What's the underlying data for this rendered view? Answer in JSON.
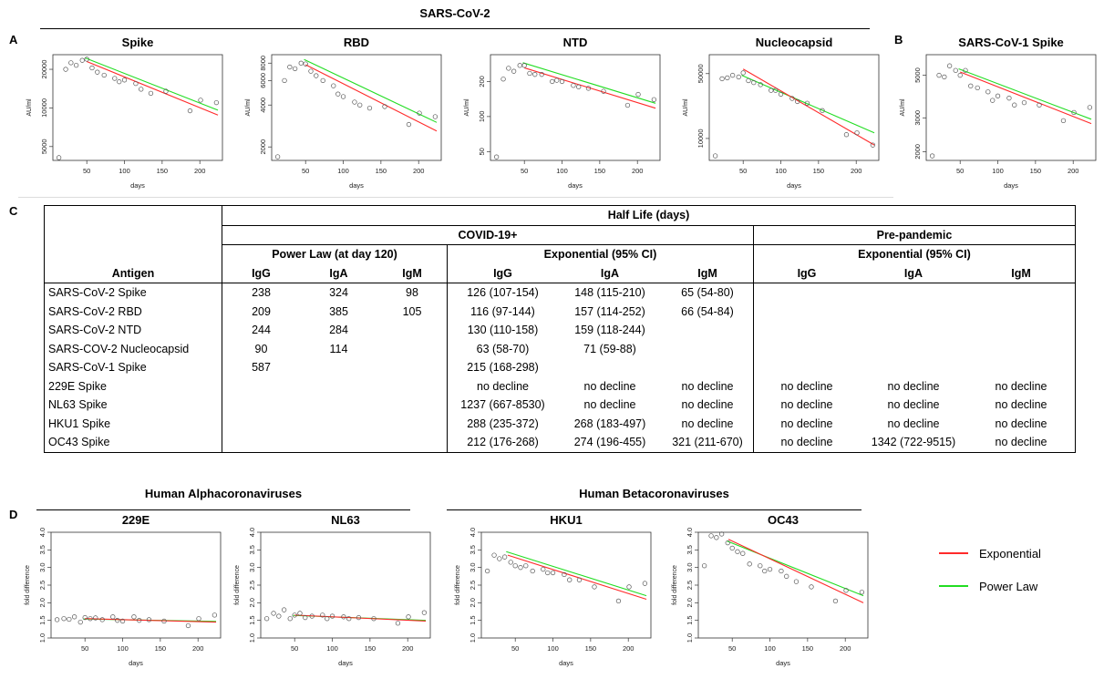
{
  "panels": {
    "a": "A",
    "b": "B",
    "c": "C",
    "d": "D",
    "sars2_title": "SARS-CoV-2",
    "alpha_title": "Human Alphacoronaviruses",
    "beta_title": "Human Betacoronaviruses"
  },
  "legend": [
    {
      "label": "Exponential",
      "color": "#ff2a2a"
    },
    {
      "label": "Power Law",
      "color": "#22dd22"
    }
  ],
  "table": {
    "title": "Half Life (days)",
    "group_covid": "COVID-19+",
    "group_prepandemic": "Pre-pandemic",
    "sub_powerlaw": "Power Law (at day 120)",
    "sub_exp": "Exponential (95% CI)",
    "sub_exp_pre": "Exponential (95% CI)",
    "col_antigen": "Antigen",
    "cols": [
      "IgG",
      "IgA",
      "IgM",
      "IgG",
      "IgA",
      "IgM",
      "IgG",
      "IgA",
      "IgM"
    ],
    "rows": [
      [
        "SARS-CoV-2 Spike",
        "238",
        "324",
        "98",
        "126 (107-154)",
        "148 (115-210)",
        "65 (54-80)",
        "",
        "",
        ""
      ],
      [
        "SARS-CoV-2 RBD",
        "209",
        "385",
        "105",
        "116 (97-144)",
        "157 (114-252)",
        "66 (54-84)",
        "",
        "",
        ""
      ],
      [
        "SARS-CoV-2 NTD",
        "244",
        "284",
        "",
        "130 (110-158)",
        "159 (118-244)",
        "",
        "",
        "",
        ""
      ],
      [
        "SARS-COV-2 Nucleocapsid",
        "90",
        "114",
        "",
        "63 (58-70)",
        "71 (59-88)",
        "",
        "",
        "",
        ""
      ],
      [
        "SARS-CoV-1 Spike",
        "587",
        "",
        "",
        "215 (168-298)",
        "",
        "",
        "",
        "",
        ""
      ],
      [
        "229E Spike",
        "",
        "",
        "",
        "no decline",
        "no decline",
        "no decline",
        "no decline",
        "no decline",
        "no decline"
      ],
      [
        "NL63 Spike",
        "",
        "",
        "",
        "1237 (667-8530)",
        "no decline",
        "no decline",
        "no decline",
        "no decline",
        "no decline"
      ],
      [
        "HKU1 Spike",
        "",
        "",
        "",
        "288 (235-372)",
        "268 (183-497)",
        "no decline",
        "no decline",
        "no decline",
        "no decline"
      ],
      [
        "OC43 Spike",
        "",
        "",
        "",
        "212 (176-268)",
        "274 (196-455)",
        "321 (211-670)",
        "no decline",
        "1342 (722-9515)",
        "no decline"
      ]
    ]
  },
  "chart_data": [
    {
      "type": "scatter",
      "title": "Spike",
      "xlabel": "days",
      "ylabel": "AU/ml",
      "log_y": true,
      "xlim": [
        5,
        230
      ],
      "ylim": [
        3900,
        26000
      ],
      "xticks": [
        50,
        100,
        150,
        200
      ],
      "yticks": [
        5000,
        10000,
        20000
      ],
      "ytick_labels": [
        "5000",
        "10000",
        "20000"
      ],
      "x": [
        13,
        22,
        29,
        36,
        44,
        50,
        57,
        64,
        73,
        87,
        93,
        100,
        115,
        122,
        135,
        155,
        187,
        201,
        222
      ],
      "y": [
        4100,
        20000,
        22500,
        21500,
        23500,
        24000,
        20500,
        19000,
        18000,
        17000,
        16000,
        16500,
        15500,
        14000,
        13000,
        13500,
        9500,
        11500,
        11000
      ],
      "exp_fit": [
        [
          50,
          23000
        ],
        [
          224,
          8800
        ]
      ],
      "power_fit": [
        [
          48,
          24500
        ],
        [
          224,
          9600
        ]
      ]
    },
    {
      "type": "scatter",
      "title": "RBD",
      "xlabel": "days",
      "ylabel": "AU/ml",
      "log_y": true,
      "xlim": [
        5,
        230
      ],
      "ylim": [
        1600,
        9200
      ],
      "xticks": [
        50,
        100,
        150,
        200
      ],
      "yticks": [
        2000,
        4000,
        6000,
        8000
      ],
      "ytick_labels": [
        "2000",
        "4000",
        "6000",
        "8000"
      ],
      "x": [
        13,
        22,
        29,
        36,
        44,
        50,
        57,
        64,
        73,
        87,
        93,
        100,
        115,
        122,
        135,
        155,
        187,
        201,
        222
      ],
      "y": [
        1700,
        6000,
        7500,
        7300,
        8000,
        7900,
        7000,
        6500,
        6000,
        5500,
        4800,
        4600,
        4200,
        4000,
        3800,
        3900,
        2900,
        3500,
        3300
      ],
      "exp_fit": [
        [
          50,
          7800
        ],
        [
          224,
          2600
        ]
      ],
      "power_fit": [
        [
          48,
          8500
        ],
        [
          224,
          3000
        ]
      ]
    },
    {
      "type": "scatter",
      "title": "NTD",
      "xlabel": "days",
      "ylabel": "AU/ml",
      "log_y": true,
      "xlim": [
        5,
        230
      ],
      "ylim": [
        42,
        340
      ],
      "xticks": [
        50,
        100,
        150,
        200
      ],
      "yticks": [
        50,
        100,
        200
      ],
      "ytick_labels": [
        "50",
        "100",
        "200"
      ],
      "x": [
        13,
        22,
        29,
        36,
        44,
        50,
        57,
        64,
        73,
        87,
        93,
        100,
        115,
        122,
        135,
        155,
        187,
        201,
        222
      ],
      "y": [
        45,
        210,
        260,
        245,
        275,
        275,
        235,
        230,
        230,
        200,
        205,
        200,
        185,
        180,
        175,
        165,
        125,
        155,
        140
      ],
      "exp_fit": [
        [
          50,
          262
        ],
        [
          224,
          118
        ]
      ],
      "power_fit": [
        [
          48,
          290
        ],
        [
          224,
          130
        ]
      ]
    },
    {
      "type": "scatter",
      "title": "Nucleocapsid",
      "xlabel": "days",
      "ylabel": "AU/ml",
      "log_y": true,
      "xlim": [
        5,
        230
      ],
      "ylim": [
        5800,
        80000
      ],
      "xticks": [
        50,
        100,
        150,
        200
      ],
      "yticks": [
        10000,
        50000
      ],
      "ytick_labels": [
        "10000",
        "50000"
      ],
      "x": [
        13,
        22,
        29,
        36,
        44,
        50,
        57,
        64,
        73,
        87,
        93,
        100,
        115,
        122,
        135,
        155,
        187,
        201,
        222
      ],
      "y": [
        6500,
        44000,
        45000,
        48000,
        46000,
        51000,
        42000,
        40000,
        38000,
        33000,
        33000,
        30000,
        27000,
        25000,
        24000,
        20000,
        11000,
        11500,
        8500
      ],
      "exp_fit": [
        [
          50,
          56000
        ],
        [
          224,
          8500
        ]
      ],
      "power_fit": [
        [
          48,
          48000
        ],
        [
          224,
          11500
        ]
      ]
    },
    {
      "type": "scatter",
      "title": "SARS-CoV-1 Spike",
      "xlabel": "days",
      "ylabel": "AU/ml",
      "log_y": true,
      "xlim": [
        5,
        230
      ],
      "ylim": [
        1800,
        6400
      ],
      "xticks": [
        50,
        100,
        150,
        200
      ],
      "yticks": [
        2000,
        3000,
        5000
      ],
      "ytick_labels": [
        "2000",
        "3000",
        "5000"
      ],
      "x": [
        13,
        22,
        29,
        36,
        44,
        50,
        57,
        64,
        73,
        87,
        93,
        100,
        115,
        122,
        135,
        155,
        187,
        201,
        222
      ],
      "y": [
        1900,
        5000,
        4900,
        5600,
        5300,
        5000,
        5300,
        4400,
        4300,
        4100,
        3700,
        3900,
        3800,
        3500,
        3600,
        3500,
        2900,
        3200,
        3400
      ],
      "exp_fit": [
        [
          50,
          5200
        ],
        [
          224,
          2800
        ]
      ],
      "power_fit": [
        [
          48,
          5400
        ],
        [
          224,
          2950
        ]
      ]
    },
    {
      "type": "scatter",
      "title": "229E",
      "xlabel": "days",
      "ylabel": "fold difference",
      "log_y": false,
      "xlim": [
        5,
        230
      ],
      "ylim": [
        1.0,
        4.0
      ],
      "xticks": [
        50,
        100,
        150,
        200
      ],
      "yticks": [
        1.0,
        1.5,
        2.0,
        2.5,
        3.0,
        3.5,
        4.0
      ],
      "ytick_labels": [
        "1.0",
        "1.5",
        "2.0",
        "2.5",
        "3.0",
        "3.5",
        "4.0"
      ],
      "x": [
        13,
        22,
        29,
        36,
        44,
        50,
        57,
        64,
        73,
        87,
        93,
        100,
        115,
        122,
        135,
        155,
        187,
        201,
        222
      ],
      "y": [
        1.52,
        1.55,
        1.53,
        1.6,
        1.45,
        1.58,
        1.55,
        1.57,
        1.52,
        1.6,
        1.5,
        1.48,
        1.6,
        1.5,
        1.52,
        1.48,
        1.35,
        1.55,
        1.65
      ],
      "exp_fit": [
        [
          50,
          1.55
        ],
        [
          224,
          1.45
        ]
      ],
      "power_fit": [
        [
          48,
          1.54
        ],
        [
          224,
          1.47
        ]
      ]
    },
    {
      "type": "scatter",
      "title": "NL63",
      "xlabel": "days",
      "ylabel": "fold difference",
      "log_y": false,
      "xlim": [
        5,
        230
      ],
      "ylim": [
        1.0,
        4.0
      ],
      "xticks": [
        50,
        100,
        150,
        200
      ],
      "yticks": [
        1.0,
        1.5,
        2.0,
        2.5,
        3.0,
        3.5,
        4.0
      ],
      "ytick_labels": [
        "1.0",
        "1.5",
        "2.0",
        "2.5",
        "3.0",
        "3.5",
        "4.0"
      ],
      "x": [
        13,
        22,
        29,
        36,
        44,
        50,
        57,
        64,
        73,
        87,
        93,
        100,
        115,
        122,
        135,
        155,
        187,
        201,
        222
      ],
      "y": [
        1.55,
        1.7,
        1.62,
        1.8,
        1.55,
        1.65,
        1.7,
        1.58,
        1.62,
        1.65,
        1.55,
        1.62,
        1.6,
        1.55,
        1.58,
        1.55,
        1.42,
        1.6,
        1.72
      ],
      "exp_fit": [
        [
          50,
          1.65
        ],
        [
          224,
          1.48
        ]
      ],
      "power_fit": [
        [
          48,
          1.64
        ],
        [
          224,
          1.5
        ]
      ]
    },
    {
      "type": "scatter",
      "title": "HKU1",
      "xlabel": "days",
      "ylabel": "fold difference",
      "log_y": false,
      "xlim": [
        5,
        230
      ],
      "ylim": [
        1.0,
        4.0
      ],
      "xticks": [
        50,
        100,
        150,
        200
      ],
      "yticks": [
        1.0,
        1.5,
        2.0,
        2.5,
        3.0,
        3.5,
        4.0
      ],
      "ytick_labels": [
        "1.0",
        "1.5",
        "2.0",
        "2.5",
        "3.0",
        "3.5",
        "4.0"
      ],
      "x": [
        13,
        22,
        29,
        36,
        44,
        50,
        57,
        64,
        73,
        87,
        93,
        100,
        115,
        122,
        135,
        155,
        187,
        201,
        222
      ],
      "y": [
        2.9,
        3.35,
        3.25,
        3.3,
        3.15,
        3.05,
        3.0,
        3.05,
        2.9,
        2.95,
        2.85,
        2.85,
        2.8,
        2.65,
        2.65,
        2.45,
        2.05,
        2.45,
        2.55
      ],
      "exp_fit": [
        [
          40,
          3.35
        ],
        [
          224,
          2.1
        ]
      ],
      "power_fit": [
        [
          38,
          3.45
        ],
        [
          224,
          2.2
        ]
      ]
    },
    {
      "type": "scatter",
      "title": "OC43",
      "xlabel": "days",
      "ylabel": "fold difference",
      "log_y": false,
      "xlim": [
        5,
        230
      ],
      "ylim": [
        1.0,
        4.0
      ],
      "xticks": [
        50,
        100,
        150,
        200
      ],
      "yticks": [
        1.0,
        1.5,
        2.0,
        2.5,
        3.0,
        3.5,
        4.0
      ],
      "ytick_labels": [
        "1.0",
        "1.5",
        "2.0",
        "2.5",
        "3.0",
        "3.5",
        "4.0"
      ],
      "x": [
        13,
        22,
        29,
        36,
        44,
        50,
        57,
        64,
        73,
        87,
        93,
        100,
        115,
        122,
        135,
        155,
        187,
        201,
        222
      ],
      "y": [
        3.05,
        3.9,
        3.85,
        3.95,
        3.7,
        3.55,
        3.45,
        3.4,
        3.1,
        3.05,
        2.9,
        2.95,
        2.9,
        2.75,
        2.6,
        2.45,
        2.05,
        2.35,
        2.3
      ],
      "exp_fit": [
        [
          45,
          3.8
        ],
        [
          224,
          2.0
        ]
      ],
      "power_fit": [
        [
          43,
          3.75
        ],
        [
          224,
          2.2
        ]
      ]
    }
  ]
}
